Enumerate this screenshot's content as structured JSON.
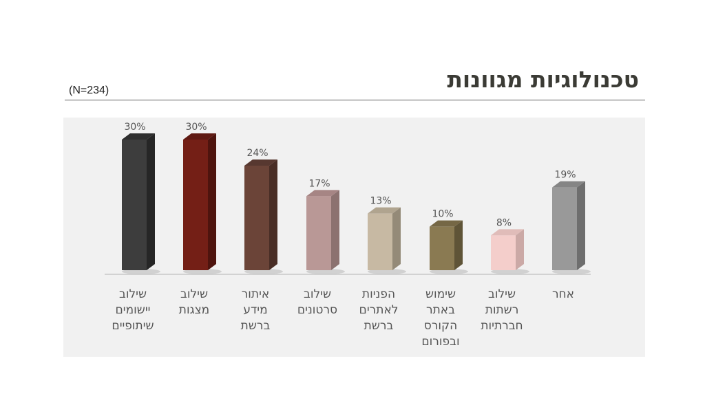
{
  "slide": {
    "title": "טכנולוגיות מגוונות",
    "sample_size": "(N=234)"
  },
  "chart_data": {
    "type": "bar",
    "title": "",
    "xlabel": "",
    "ylabel": "",
    "ylim": [
      0,
      30
    ],
    "grid": false,
    "legend": "none",
    "categories": [
      [
        "שילוב",
        "יישומים",
        "שיתופיים"
      ],
      [
        "שילוב",
        "מצגות"
      ],
      [
        "איתור",
        "מידע",
        "ברשת"
      ],
      [
        "שילוב",
        "סרטונים"
      ],
      [
        "הפניות",
        "לאתרים",
        "ברשת"
      ],
      [
        "שימוש",
        "באתר",
        "הקורס",
        "ובפורום"
      ],
      [
        "שילוב",
        "רשתות",
        "חברתיות"
      ],
      [
        "אחר"
      ]
    ],
    "values": [
      30,
      30,
      24,
      17,
      13,
      10,
      8,
      19
    ],
    "value_labels": [
      "30%",
      "30%",
      "24%",
      "17%",
      "13%",
      "10%",
      "8%",
      "19%"
    ],
    "colors": [
      {
        "front": "#3d3d3d",
        "side": "#262626",
        "top": "#2e2e2e"
      },
      {
        "front": "#741f16",
        "side": "#4e140e",
        "top": "#5f1912"
      },
      {
        "front": "#6b4438",
        "side": "#492e26",
        "top": "#573830"
      },
      {
        "front": "#b99896",
        "side": "#8c7270",
        "top": "#a68584"
      },
      {
        "front": "#c7b9a3",
        "side": "#948a78",
        "top": "#b0a48f"
      },
      {
        "front": "#8a7a52",
        "side": "#5f5437",
        "top": "#756745"
      },
      {
        "front": "#f4cecb",
        "side": "#cba9a6",
        "top": "#e0bcb9"
      },
      {
        "front": "#999999",
        "side": "#6e6e6e",
        "top": "#858585"
      }
    ]
  }
}
